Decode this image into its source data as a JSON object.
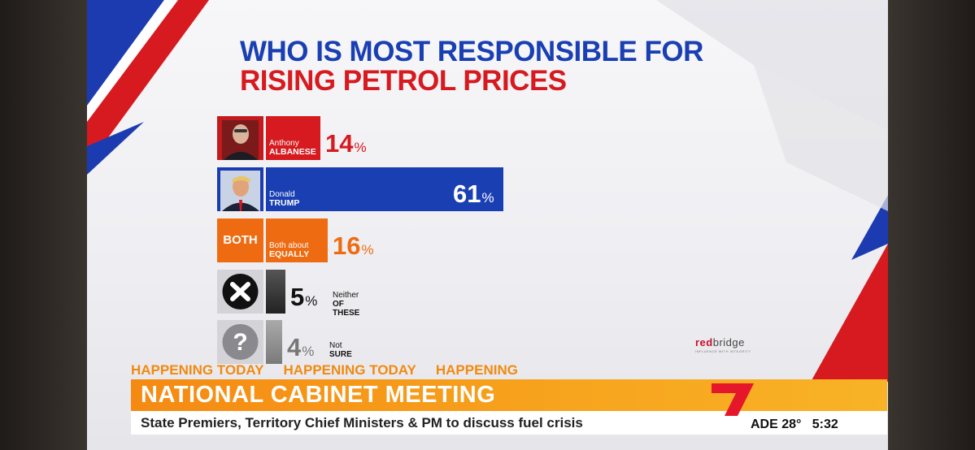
{
  "colors": {
    "blue": "#1a3fb3",
    "red": "#d61a1f",
    "orange": "#ef6b12",
    "grey": "#3a3a3a",
    "ticker": "#f58a12"
  },
  "chart_data": {
    "type": "bar",
    "title": "WHO IS MOST RESPONSIBLE FOR",
    "subtitle": "RISING PETROL PRICES",
    "categories": [
      "Anthony ALBANESE",
      "Donald TRUMP",
      "Both about EQUALLY",
      "Neither OF THESE",
      "Not SURE"
    ],
    "values": [
      14,
      61,
      16,
      5,
      4
    ],
    "unit": "%",
    "bar_colors": [
      "#d61a1f",
      "#1a3fb3",
      "#ef6b12",
      "#333333",
      "#8a8a8a"
    ],
    "rows": [
      {
        "line1": "Anthony",
        "line2": "ALBANESE",
        "value": "14",
        "icon": "albanese-photo"
      },
      {
        "line1": "Donald",
        "line2": "TRUMP",
        "value": "61",
        "icon": "trump-photo"
      },
      {
        "line1": "Both about",
        "line2": "EQUALLY",
        "value": "16",
        "icon": "both-label",
        "icon_text": "BOTH"
      },
      {
        "line1": "Neither",
        "line2": "OF THESE",
        "value": "5",
        "icon": "x-circle-icon"
      },
      {
        "line1": "Not",
        "line2": "SURE",
        "value": "4",
        "icon": "question-circle-icon"
      }
    ],
    "percent_sign": "%"
  },
  "source": {
    "brand_red": "red",
    "brand_rest": "bridge",
    "tagline": "INFLUENCE WITH INTEGRITY"
  },
  "ticker": {
    "happening": [
      "HAPPENING TODAY",
      "HAPPENING TODAY",
      "HAPPENING TODAY"
    ],
    "headline": "NATIONAL CABINET MEETING",
    "subline": "State Premiers, Territory Chief Ministers & PM to discuss fuel crisis",
    "location": "ADE",
    "temperature": "28°",
    "time": "5:32",
    "channel_logo": "seven-logo"
  }
}
